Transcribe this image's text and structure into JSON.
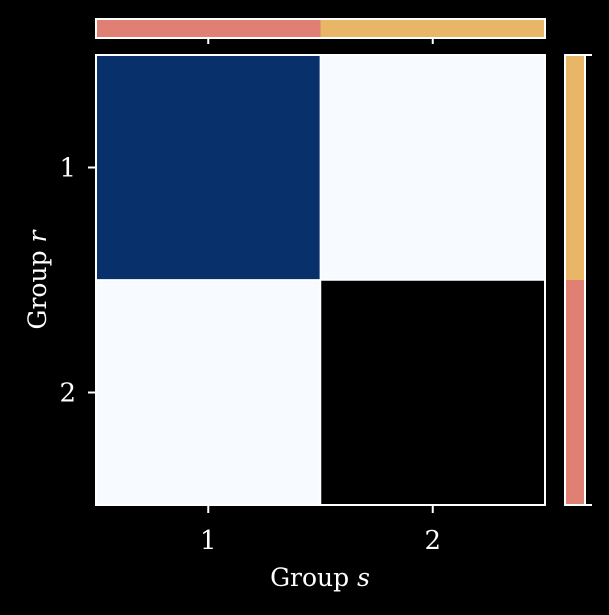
{
  "chart_data": {
    "type": "heatmap",
    "xlabel_prefix": "Group",
    "xlabel_var": "s",
    "ylabel_prefix": "Group",
    "ylabel_var": "r",
    "x_categories": [
      "1",
      "2"
    ],
    "y_categories": [
      "1",
      "2"
    ],
    "matrix": [
      [
        1,
        0
      ],
      [
        0,
        null
      ]
    ],
    "cell_colors": [
      [
        "#08306b",
        "#f7fbff"
      ],
      [
        "#f7fbff",
        "#000000"
      ]
    ],
    "group_colors": [
      "#e07f73",
      "#e9b567"
    ],
    "top_bar_fractions": [
      0.5,
      0.5
    ],
    "right_bar_fractions": [
      0.5,
      0.5
    ],
    "grid": false
  }
}
